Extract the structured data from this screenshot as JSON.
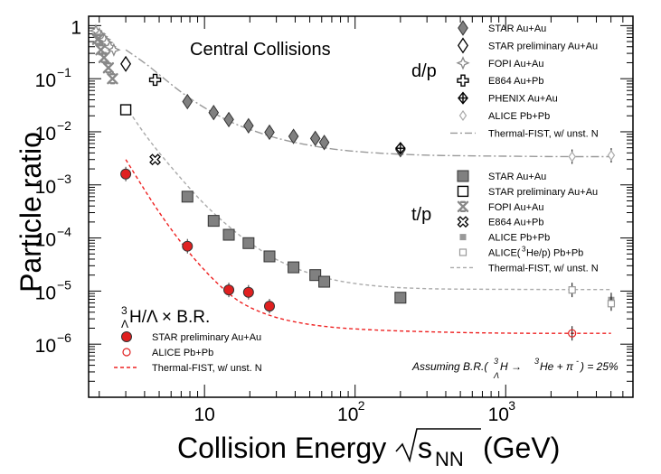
{
  "chart_data": {
    "type": "scatter",
    "xscale": "log",
    "yscale": "log",
    "xlim": [
      1.7,
      7000
    ],
    "ylim": [
      1e-07,
      1.5
    ],
    "ylabel": "Particle ratio",
    "xlabel_main": "Collision Energy",
    "xlabel_s": "s",
    "xlabel_sub": "NN",
    "xlabel_unit": "(GeV)",
    "title": "Central Collisions",
    "xticks": [
      {
        "value": 10,
        "base": "10",
        "exp": ""
      },
      {
        "value": 100,
        "base": "10",
        "exp": "2"
      },
      {
        "value": 1000,
        "base": "10",
        "exp": "3"
      }
    ],
    "yticks": [
      {
        "value": 1,
        "base": "1",
        "exp": ""
      },
      {
        "value": 0.1,
        "base": "10",
        "exp": "−1"
      },
      {
        "value": 0.01,
        "base": "10",
        "exp": "−2"
      },
      {
        "value": 0.001,
        "base": "10",
        "exp": "−3"
      },
      {
        "value": 0.0001,
        "base": "10",
        "exp": "−4"
      },
      {
        "value": 1e-05,
        "base": "10",
        "exp": "−5"
      },
      {
        "value": 1e-06,
        "base": "10",
        "exp": "−6"
      }
    ],
    "labels": {
      "dp": "d/p",
      "tp": "t/p",
      "hyper_pre": "H/Λ × B.R.",
      "hyper_sup": "3",
      "hyper_sub": "Λ",
      "assume": "Assuming B.R.(",
      "assume_mid": "H  →",
      "assume_sup1": "3",
      "assume_sub1": "Λ",
      "assume_sup2": "3",
      "assume_end": "He + π",
      "assume_sup3": "-",
      "assume_tail": ") = 25%"
    },
    "series": [
      {
        "name": "STAR Au+Au",
        "group": "dp",
        "marker": "diamond-filled",
        "color": "#808080",
        "x": [
          7.7,
          11.5,
          14.5,
          19.6,
          27,
          39,
          54.4,
          62.4,
          200
        ],
        "y": [
          0.037,
          0.023,
          0.017,
          0.013,
          0.0098,
          0.0082,
          0.0075,
          0.0063,
          0.0046
        ]
      },
      {
        "name": "STAR preliminary Au+Au",
        "group": "dp",
        "marker": "diamond-open",
        "color": "#000000",
        "x": [
          3
        ],
        "y": [
          0.19
        ]
      },
      {
        "name": "FOPI Au+Au",
        "group": "dp",
        "marker": "star",
        "color": "#888888",
        "x": [
          1.9,
          2.0,
          2.07,
          2.16,
          2.24,
          2.35,
          2.5
        ],
        "y": [
          0.8,
          0.7,
          0.62,
          0.55,
          0.48,
          0.4,
          0.35
        ]
      },
      {
        "name": "E864 Au+Pb",
        "group": "dp",
        "marker": "cross-open",
        "color": "#000000",
        "x": [
          4.7
        ],
        "y": [
          0.095
        ]
      },
      {
        "name": "PHENIX Au+Au",
        "group": "dp",
        "marker": "diamond-cross",
        "color": "#000000",
        "x": [
          200
        ],
        "y": [
          0.0049
        ]
      },
      {
        "name": "ALICE Pb+Pb",
        "group": "dp",
        "marker": "diamond-open-small",
        "color": "#aaaaaa",
        "x": [
          2760,
          5020
        ],
        "y": [
          0.0034,
          0.0036
        ]
      },
      {
        "name": "Thermal-FIST, w/ unst. N",
        "group": "dp",
        "marker": "line-dashdot",
        "color": "#999999",
        "x": [
          3,
          4,
          5,
          7,
          10,
          15,
          20,
          30,
          50,
          80,
          150,
          300,
          700,
          2000,
          5000
        ],
        "y": [
          0.35,
          0.2,
          0.12,
          0.055,
          0.028,
          0.015,
          0.011,
          0.0075,
          0.0055,
          0.0045,
          0.0039,
          0.0036,
          0.0035,
          0.0034,
          0.0034
        ]
      },
      {
        "name": "STAR Au+Au",
        "group": "tp",
        "marker": "square-filled",
        "color": "#808080",
        "x": [
          7.7,
          11.5,
          14.5,
          19.6,
          27,
          39,
          54.4,
          62.4,
          200
        ],
        "y": [
          0.0006,
          0.00021,
          0.000115,
          8e-05,
          4.5e-05,
          2.8e-05,
          2e-05,
          1.5e-05,
          7.5e-06
        ]
      },
      {
        "name": "STAR preliminary Au+Au",
        "group": "tp",
        "marker": "square-open",
        "color": "#000000",
        "x": [
          3
        ],
        "y": [
          0.026
        ]
      },
      {
        "name": "FOPI Au+Au",
        "group": "tp",
        "marker": "x-star",
        "color": "#888888",
        "x": [
          1.95,
          2.05,
          2.15,
          2.3,
          2.45
        ],
        "y": [
          0.55,
          0.35,
          0.25,
          0.16,
          0.1
        ]
      },
      {
        "name": "E864 Au+Pb",
        "group": "tp",
        "marker": "x-open",
        "color": "#000000",
        "x": [
          4.7
        ],
        "y": [
          0.003
        ]
      },
      {
        "name": "ALICE Pb+Pb",
        "group": "tp",
        "marker": "square-filled-small",
        "color": "#999999",
        "x": [
          5020
        ],
        "y": [
          6.8e-06
        ]
      },
      {
        "name": "ALICE(³He/p) Pb+Pb",
        "name_pre": "ALICE(",
        "name_sup": "3",
        "name_post": "He/p) Pb+Pb",
        "group": "tp",
        "marker": "square-open-small",
        "color": "#999999",
        "x": [
          2760,
          5020
        ],
        "y": [
          1.05e-05,
          5.8e-06
        ]
      },
      {
        "name": "Thermal-FIST, w/ unst. N",
        "group": "tp",
        "marker": "line-dashed",
        "color": "#aaaaaa",
        "x": [
          3,
          4,
          5,
          7,
          10,
          15,
          20,
          30,
          50,
          80,
          150,
          300,
          700,
          2000,
          5000
        ],
        "y": [
          0.03,
          0.009,
          0.004,
          0.0013,
          0.00042,
          0.00015,
          8e-05,
          3.8e-05,
          2.1e-05,
          1.5e-05,
          1.2e-05,
          1.1e-05,
          1.08e-05,
          1.07e-05,
          1.07e-05
        ]
      },
      {
        "name": "STAR preliminary Au+Au",
        "group": "hyper",
        "marker": "circle-filled",
        "color": "#e02020",
        "x": [
          3,
          7.7,
          14.5,
          19.6,
          27
        ],
        "y": [
          0.0016,
          7e-05,
          1.05e-05,
          9.5e-06,
          5.2e-06
        ]
      },
      {
        "name": "ALICE Pb+Pb",
        "group": "hyper",
        "marker": "circle-open",
        "color": "#e02020",
        "x": [
          2760
        ],
        "y": [
          1.6e-06
        ]
      },
      {
        "name": "Thermal-FIST, w/ unst. N",
        "group": "hyper",
        "marker": "line-dashed",
        "color": "#ee2020",
        "x": [
          3,
          4,
          5,
          7,
          10,
          15,
          20,
          30,
          50,
          100,
          300,
          1000,
          5000
        ],
        "y": [
          0.003,
          0.0008,
          0.0003,
          8e-05,
          2.4e-05,
          8e-06,
          4.8e-06,
          3.1e-06,
          2.3e-06,
          1.9e-06,
          1.7e-06,
          1.6e-06,
          1.6e-06
        ]
      }
    ]
  }
}
